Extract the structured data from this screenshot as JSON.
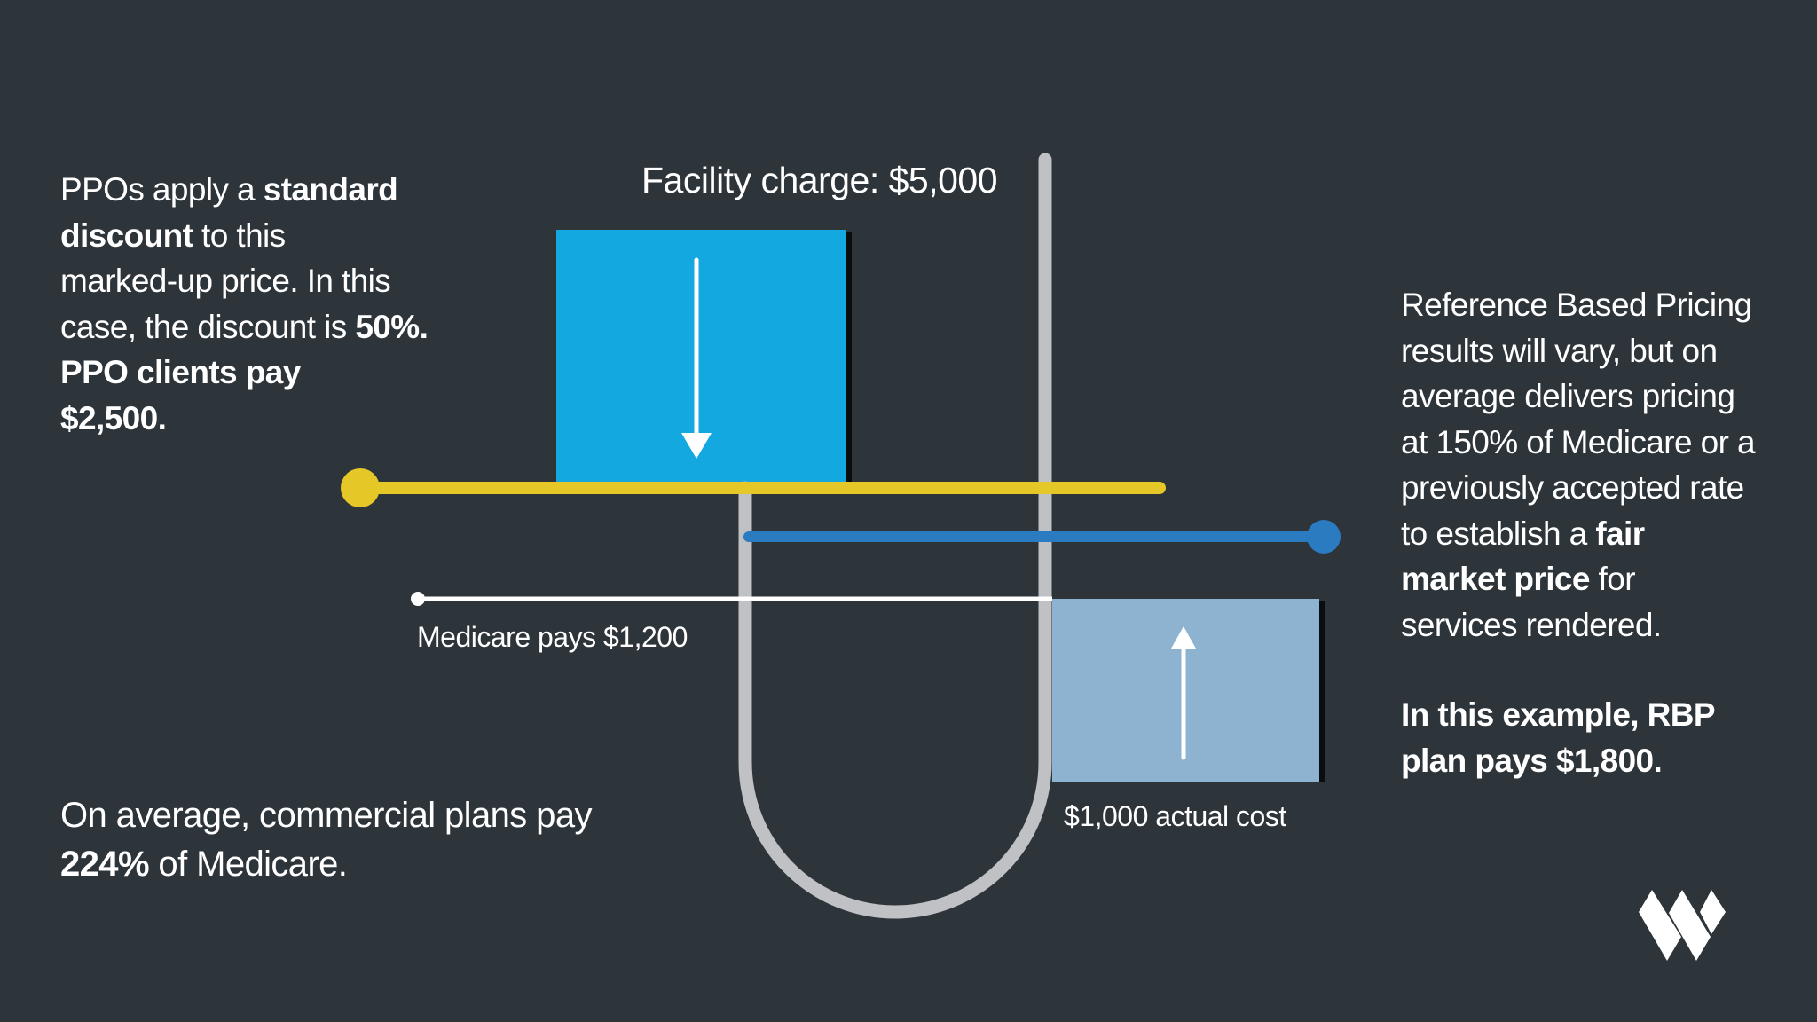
{
  "colors": {
    "background": "#2d343a",
    "facility_box": "#13a8e0",
    "ppo_line": "#e5c727",
    "rbp_line": "#2a7bc0",
    "cost_box": "#8db3d1",
    "u_curve": "#c0c1c5",
    "medicare_line": "#ffffff",
    "text": "#ffffff"
  },
  "left_top_text": {
    "lines": [
      [
        {
          "t": "PPOs apply a ",
          "b": false
        },
        {
          "t": "standard",
          "b": true
        }
      ],
      [
        {
          "t": "discount",
          "b": true
        },
        {
          "t": " to this",
          "b": false
        }
      ],
      [
        {
          "t": "marked-up price. In this",
          "b": false
        }
      ],
      [
        {
          "t": "case, the discount is ",
          "b": false
        },
        {
          "t": "50%.",
          "b": true
        }
      ],
      [
        {
          "t": "PPO clients pay",
          "b": true
        }
      ],
      [
        {
          "t": "$2,500.",
          "b": true
        }
      ]
    ]
  },
  "left_bottom_text": {
    "lines": [
      [
        {
          "t": "On average, commercial plans pay",
          "b": false
        }
      ],
      [
        {
          "t": "224%",
          "b": true
        },
        {
          "t": " of Medicare.",
          "b": false
        }
      ]
    ]
  },
  "right_text": {
    "lines": [
      [
        {
          "t": "Reference Based Pricing",
          "b": false
        }
      ],
      [
        {
          "t": "results will vary, but on",
          "b": false
        }
      ],
      [
        {
          "t": "average delivers pricing",
          "b": false
        }
      ],
      [
        {
          "t": "at 150% of Medicare or a",
          "b": false
        }
      ],
      [
        {
          "t": "previously accepted rate",
          "b": false
        }
      ],
      [
        {
          "t": "to establish a ",
          "b": false
        },
        {
          "t": "fair",
          "b": true
        }
      ],
      [
        {
          "t": "market price",
          "b": true
        },
        {
          "t": " for",
          "b": false
        }
      ],
      [
        {
          "t": "services rendered.",
          "b": false
        }
      ]
    ]
  },
  "right_conclusion": {
    "lines": [
      [
        {
          "t": "In this example, RBP",
          "b": true
        }
      ],
      [
        {
          "t": "plan pays $1,800.",
          "b": true
        }
      ]
    ]
  },
  "labels": {
    "facility_charge": "Facility charge: $5,000",
    "medicare_pays": "Medicare pays $1,200",
    "actual_cost": "$1,000 actual cost"
  },
  "icons": {
    "down_arrow": "arrow-down-icon",
    "up_arrow": "arrow-up-icon",
    "logo": "w-logo-icon"
  },
  "chart_data": {
    "type": "diagram",
    "title": "Facility charge vs. payment levels",
    "levels": [
      {
        "name": "Facility charge",
        "value": 5000
      },
      {
        "name": "PPO clients pay (50% discount)",
        "value": 2500
      },
      {
        "name": "RBP plan pays (150% of Medicare)",
        "value": 1800
      },
      {
        "name": "Medicare pays",
        "value": 1200
      },
      {
        "name": "Actual cost",
        "value": 1000
      }
    ],
    "annotations": [
      "PPO discount: 50%",
      "Commercial plans pay 224% of Medicare on average",
      "RBP averages 150% of Medicare"
    ]
  }
}
